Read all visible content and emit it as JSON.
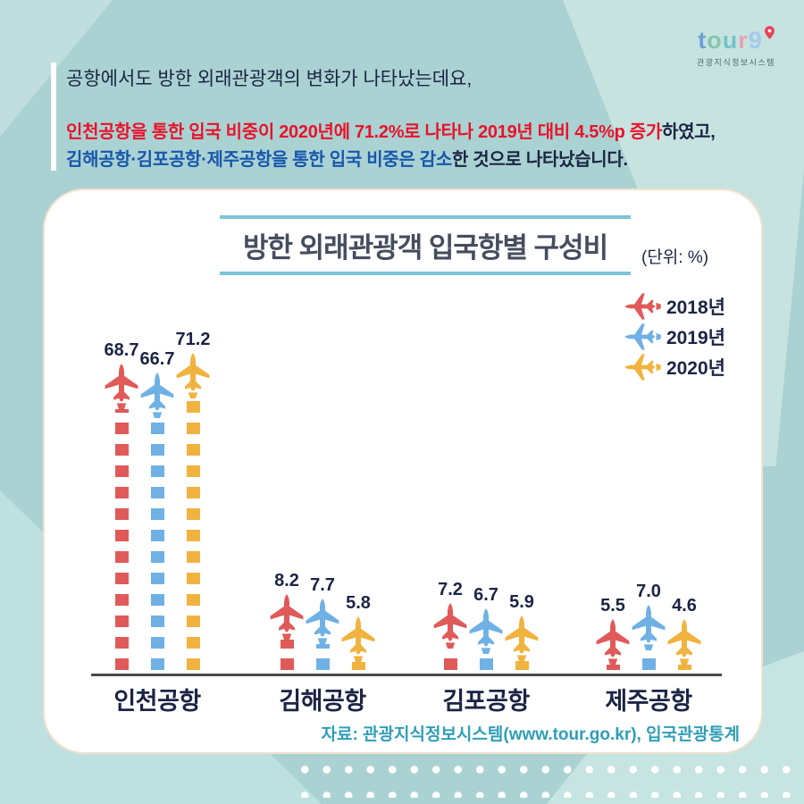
{
  "background": {
    "base": "#aad2d2",
    "light": "#c7e3e0"
  },
  "logo": {
    "letters": [
      {
        "ch": "t",
        "color": "#6ba0d6"
      },
      {
        "ch": "o",
        "color": "#83c7ae"
      },
      {
        "ch": "u",
        "color": "#72c3c9"
      },
      {
        "ch": "r",
        "color": "#eb9fae"
      },
      {
        "ch": "9",
        "color": "#a3c9ec"
      }
    ],
    "pin_color": "#e8435a",
    "subtitle": "관광지식정보시스템"
  },
  "header": {
    "line1": "공항에서도 방한 외래관광객의 변화가 나타났는데요,",
    "line2_red": "인천공항을 통한 입국 비중이 2020년에 71.2%로 나타나 2019년 대비 4.5%p 증가",
    "line2_dark": "하였고,",
    "line3_blue": "김해공항·김포공항·제주공항을 통한 입국 비중은 감소",
    "line3_dark": "한 것으로 나타났습니다.",
    "colors": {
      "dark": "#1b2444",
      "red": "#e8132b",
      "blue": "#1757ad"
    }
  },
  "card": {
    "unit_label": "(단위: %)",
    "source": "자료: 관광지식정보시스템(www.tour.go.kr), 입국관광통계"
  },
  "chart_data": {
    "type": "bar",
    "title": "방한 외래관광객 입국항별 구성비",
    "unit": "%",
    "categories": [
      "인천공항",
      "김해공항",
      "김포공항",
      "제주공항"
    ],
    "series": [
      {
        "name": "2018년",
        "color": "#e05a5a",
        "values": [
          68.7,
          8.2,
          7.2,
          5.5
        ]
      },
      {
        "name": "2019년",
        "color": "#6fb1e5",
        "values": [
          66.7,
          7.7,
          6.7,
          7.0
        ]
      },
      {
        "name": "2020년",
        "color": "#f1b33f",
        "values": [
          71.2,
          5.8,
          5.9,
          4.6
        ]
      }
    ],
    "legend_position": "top-right",
    "grid": false,
    "value_labels": true,
    "bar_style": "airplane-dashed-trail",
    "text_color": "#1b2444",
    "axis_color": "#4a4a4a"
  }
}
